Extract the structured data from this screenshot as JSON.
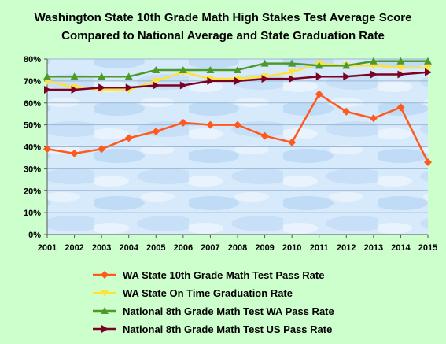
{
  "chart_data": {
    "type": "line",
    "title_lines": [
      "Washington State 10th Grade Math High Stakes Test Average Score",
      "Compared to National Average and State Graduation Rate"
    ],
    "xlabel": "",
    "ylabel": "",
    "categories": [
      "2001",
      "2002",
      "2003",
      "2004",
      "2005",
      "2006",
      "2007",
      "2008",
      "2009",
      "2010",
      "2011",
      "2012",
      "2013",
      "2014",
      "2015"
    ],
    "ylim": [
      0,
      80
    ],
    "yticks": [
      0,
      10,
      20,
      30,
      40,
      50,
      60,
      70,
      80
    ],
    "ytick_labels": [
      "0%",
      "10%",
      "20%",
      "30%",
      "40%",
      "50%",
      "60%",
      "70%",
      "80%"
    ],
    "grid": true,
    "legend_position": "bottom",
    "series": [
      {
        "name": "WA State 10th Grade Math Test Pass Rate",
        "color": "#ff5a1e",
        "marker": "diamond",
        "values": [
          39,
          37,
          39,
          44,
          47,
          51,
          50,
          50,
          45,
          42,
          64,
          56,
          53,
          58,
          33
        ]
      },
      {
        "name": "WA State On Time Graduation Rate",
        "color": "#ffe23a",
        "marker": "triangle-down",
        "values": [
          70,
          67,
          66,
          66,
          70,
          74,
          71,
          71,
          72,
          74,
          78,
          77,
          77,
          76,
          76
        ]
      },
      {
        "name": "National 8th Grade Math Test WA Pass Rate",
        "color": "#4c9a2a",
        "marker": "triangle-up",
        "values": [
          72,
          72,
          72,
          72,
          75,
          75,
          75,
          75,
          78,
          78,
          77,
          77,
          79,
          79,
          79
        ]
      },
      {
        "name": "National 8th Grade Math Test US Pass Rate",
        "color": "#7b0024",
        "marker": "triangle-right",
        "values": [
          66,
          66,
          67,
          67,
          68,
          68,
          70,
          70,
          71,
          71,
          72,
          72,
          73,
          73,
          74
        ]
      }
    ]
  }
}
